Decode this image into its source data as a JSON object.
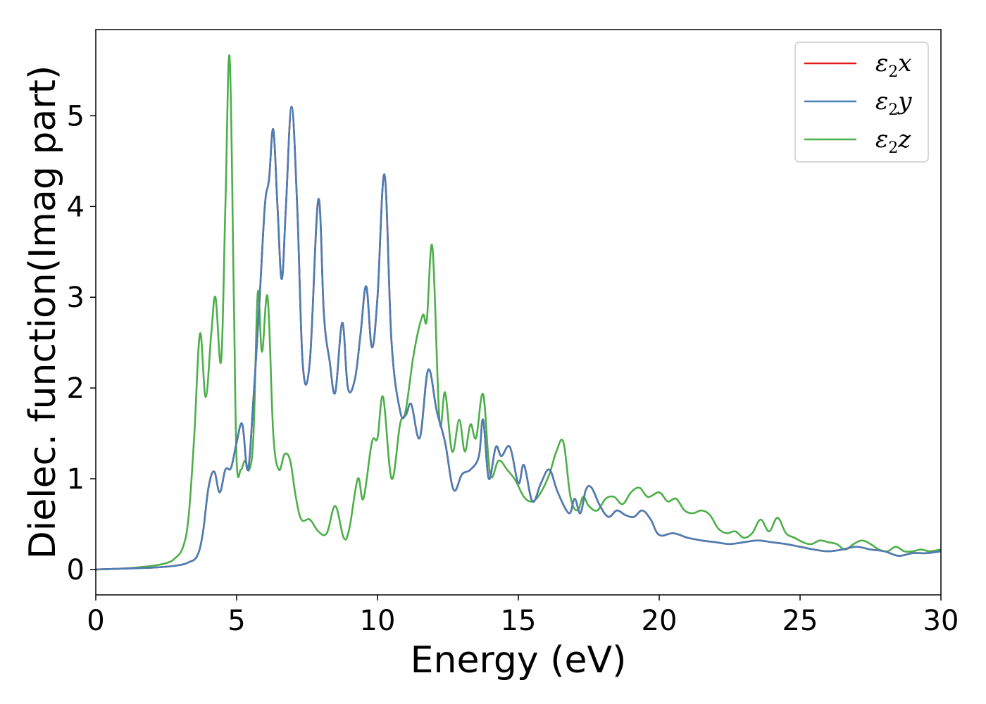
{
  "chart_data": {
    "type": "line",
    "title": "",
    "xlabel": "Energy (eV)",
    "ylabel": "Dielec. function(Imag part)",
    "xlim": [
      0,
      30
    ],
    "ylim": [
      -0.28,
      5.95
    ],
    "xticks": [
      0,
      5,
      10,
      15,
      20,
      25,
      30
    ],
    "yticks": [
      0,
      1,
      2,
      3,
      4,
      5
    ],
    "grid": false,
    "legend_position": "top-right",
    "series": [
      {
        "name": "ε2x",
        "legend_symbol": "ε",
        "legend_sub": "2",
        "legend_var": "x",
        "color": "#e41a1c",
        "x": [
          0,
          1,
          2,
          2.5,
          3,
          3.3,
          3.6,
          3.8,
          4.0,
          4.2,
          4.4,
          4.6,
          4.8,
          5.0,
          5.2,
          5.4,
          5.6,
          5.8,
          6.0,
          6.15,
          6.3,
          6.45,
          6.6,
          6.75,
          6.95,
          7.15,
          7.35,
          7.6,
          7.9,
          8.1,
          8.3,
          8.5,
          8.75,
          8.95,
          9.2,
          9.4,
          9.6,
          9.8,
          10.0,
          10.25,
          10.5,
          10.8,
          11.0,
          11.2,
          11.5,
          11.8,
          12.1,
          12.4,
          12.7,
          13.0,
          13.3,
          13.6,
          13.75,
          13.95,
          14.2,
          14.4,
          14.7,
          15.0,
          15.2,
          15.5,
          15.8,
          16.1,
          16.4,
          16.8,
          17.0,
          17.2,
          17.4,
          17.6,
          17.9,
          18.2,
          18.5,
          18.8,
          19.1,
          19.4,
          19.7,
          20.0,
          20.5,
          21.0,
          21.5,
          22.0,
          22.5,
          23.0,
          23.5,
          24.0,
          24.5,
          25.0,
          25.5,
          26.0,
          26.5,
          27.0,
          27.5,
          28.0,
          28.5,
          29.0,
          29.5,
          30.0
        ],
        "values": [
          0,
          0.01,
          0.02,
          0.03,
          0.05,
          0.08,
          0.15,
          0.4,
          0.9,
          1.08,
          0.85,
          1.1,
          1.12,
          1.4,
          1.6,
          1.1,
          1.9,
          2.9,
          4.0,
          4.3,
          4.85,
          4.0,
          3.2,
          4.0,
          5.1,
          4.0,
          2.25,
          2.3,
          4.08,
          2.8,
          2.3,
          1.95,
          2.72,
          2.0,
          2.1,
          2.6,
          3.12,
          2.45,
          3.0,
          4.35,
          2.5,
          1.75,
          1.7,
          1.82,
          1.45,
          2.2,
          1.75,
          1.4,
          0.88,
          1.05,
          1.1,
          1.25,
          1.65,
          1.0,
          1.35,
          1.25,
          1.35,
          0.95,
          1.15,
          0.75,
          0.95,
          1.1,
          0.85,
          0.62,
          0.78,
          0.62,
          0.88,
          0.9,
          0.7,
          0.58,
          0.65,
          0.6,
          0.58,
          0.65,
          0.55,
          0.38,
          0.4,
          0.35,
          0.32,
          0.3,
          0.28,
          0.3,
          0.32,
          0.3,
          0.28,
          0.25,
          0.22,
          0.2,
          0.22,
          0.25,
          0.22,
          0.2,
          0.15,
          0.18,
          0.18,
          0.2
        ]
      },
      {
        "name": "ε2y",
        "legend_symbol": "ε",
        "legend_sub": "2",
        "legend_var": "y",
        "color": "#4a7fb5",
        "x": [
          0,
          1,
          2,
          2.5,
          3,
          3.3,
          3.6,
          3.8,
          4.0,
          4.2,
          4.4,
          4.6,
          4.8,
          5.0,
          5.2,
          5.4,
          5.6,
          5.8,
          6.0,
          6.15,
          6.3,
          6.45,
          6.6,
          6.75,
          6.95,
          7.15,
          7.35,
          7.6,
          7.9,
          8.1,
          8.3,
          8.5,
          8.75,
          8.95,
          9.2,
          9.4,
          9.6,
          9.8,
          10.0,
          10.25,
          10.5,
          10.8,
          11.0,
          11.2,
          11.5,
          11.8,
          12.1,
          12.4,
          12.7,
          13.0,
          13.3,
          13.6,
          13.75,
          13.95,
          14.2,
          14.4,
          14.7,
          15.0,
          15.2,
          15.5,
          15.8,
          16.1,
          16.4,
          16.8,
          17.0,
          17.2,
          17.4,
          17.6,
          17.9,
          18.2,
          18.5,
          18.8,
          19.1,
          19.4,
          19.7,
          20.0,
          20.5,
          21.0,
          21.5,
          22.0,
          22.5,
          23.0,
          23.5,
          24.0,
          24.5,
          25.0,
          25.5,
          26.0,
          26.5,
          27.0,
          27.5,
          28.0,
          28.5,
          29.0,
          29.5,
          30.0
        ],
        "values": [
          0,
          0.01,
          0.02,
          0.03,
          0.05,
          0.08,
          0.15,
          0.4,
          0.9,
          1.08,
          0.85,
          1.1,
          1.12,
          1.4,
          1.6,
          1.1,
          1.9,
          2.9,
          4.0,
          4.3,
          4.85,
          4.0,
          3.2,
          4.0,
          5.1,
          4.0,
          2.25,
          2.3,
          4.08,
          2.8,
          2.3,
          1.95,
          2.72,
          2.0,
          2.1,
          2.6,
          3.12,
          2.45,
          3.0,
          4.35,
          2.5,
          1.75,
          1.7,
          1.82,
          1.45,
          2.2,
          1.75,
          1.4,
          0.88,
          1.05,
          1.1,
          1.25,
          1.65,
          1.0,
          1.35,
          1.25,
          1.35,
          0.95,
          1.15,
          0.75,
          0.95,
          1.1,
          0.85,
          0.62,
          0.78,
          0.62,
          0.88,
          0.9,
          0.7,
          0.58,
          0.65,
          0.6,
          0.58,
          0.65,
          0.55,
          0.38,
          0.4,
          0.35,
          0.32,
          0.3,
          0.28,
          0.3,
          0.32,
          0.3,
          0.28,
          0.25,
          0.22,
          0.2,
          0.22,
          0.25,
          0.22,
          0.2,
          0.15,
          0.18,
          0.18,
          0.2
        ]
      },
      {
        "name": "ε2z",
        "legend_symbol": "ε",
        "legend_sub": "2",
        "legend_var": "z",
        "color": "#4daf4a",
        "x": [
          0,
          1,
          2,
          2.5,
          2.8,
          3.1,
          3.3,
          3.5,
          3.7,
          3.9,
          4.1,
          4.25,
          4.45,
          4.6,
          4.75,
          4.9,
          5.0,
          5.15,
          5.3,
          5.45,
          5.6,
          5.75,
          5.9,
          6.1,
          6.3,
          6.5,
          6.7,
          6.9,
          7.1,
          7.3,
          7.6,
          7.9,
          8.2,
          8.5,
          8.8,
          9.0,
          9.3,
          9.5,
          9.8,
          10.0,
          10.2,
          10.5,
          10.8,
          11.0,
          11.3,
          11.6,
          11.75,
          11.95,
          12.2,
          12.4,
          12.65,
          12.9,
          13.1,
          13.3,
          13.5,
          13.75,
          14.0,
          14.3,
          14.6,
          14.9,
          15.2,
          15.5,
          15.8,
          16.1,
          16.35,
          16.6,
          16.85,
          17.1,
          17.3,
          17.5,
          17.8,
          18.1,
          18.4,
          18.7,
          19.0,
          19.3,
          19.6,
          20.0,
          20.3,
          20.6,
          20.9,
          21.2,
          21.5,
          21.8,
          22.1,
          22.4,
          22.7,
          23.0,
          23.3,
          23.6,
          23.9,
          24.2,
          24.5,
          24.8,
          25.1,
          25.4,
          25.7,
          26.0,
          26.3,
          26.6,
          26.9,
          27.2,
          27.5,
          27.8,
          28.1,
          28.4,
          28.7,
          29.0,
          29.3,
          29.6,
          30.0
        ],
        "values": [
          0,
          0.01,
          0.04,
          0.07,
          0.12,
          0.25,
          0.6,
          1.5,
          2.6,
          1.9,
          2.6,
          3.0,
          2.3,
          4.0,
          5.65,
          3.0,
          1.2,
          1.1,
          1.2,
          1.1,
          1.5,
          3.05,
          2.4,
          3.0,
          1.5,
          1.1,
          1.27,
          1.2,
          0.8,
          0.55,
          0.55,
          0.42,
          0.4,
          0.7,
          0.35,
          0.45,
          1.0,
          0.78,
          1.4,
          1.45,
          1.9,
          1.0,
          1.6,
          1.75,
          2.4,
          2.8,
          2.75,
          3.55,
          1.65,
          1.95,
          1.3,
          1.65,
          1.3,
          1.6,
          1.45,
          1.93,
          1.05,
          1.2,
          1.1,
          0.98,
          0.8,
          0.75,
          0.85,
          1.05,
          1.3,
          1.4,
          0.8,
          0.65,
          0.8,
          0.7,
          0.65,
          0.78,
          0.8,
          0.72,
          0.85,
          0.9,
          0.8,
          0.85,
          0.75,
          0.78,
          0.65,
          0.62,
          0.65,
          0.6,
          0.45,
          0.4,
          0.42,
          0.35,
          0.4,
          0.55,
          0.42,
          0.57,
          0.4,
          0.35,
          0.3,
          0.28,
          0.32,
          0.3,
          0.28,
          0.22,
          0.28,
          0.32,
          0.28,
          0.22,
          0.2,
          0.25,
          0.2,
          0.2,
          0.22,
          0.2,
          0.22
        ]
      }
    ]
  }
}
